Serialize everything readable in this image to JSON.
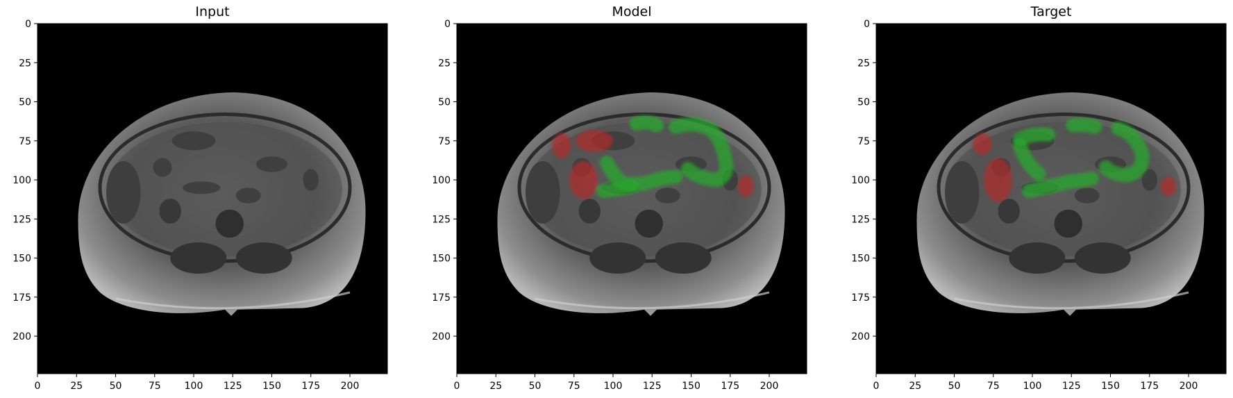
{
  "panels": [
    {
      "key": "input",
      "title": "Input",
      "overlay": false
    },
    {
      "key": "model",
      "title": "Model",
      "overlay": true
    },
    {
      "key": "target",
      "title": "Target",
      "overlay": true
    }
  ],
  "axes": {
    "x_ticks": [
      "0",
      "25",
      "50",
      "75",
      "100",
      "125",
      "150",
      "175",
      "200"
    ],
    "y_ticks": [
      "0",
      "25",
      "50",
      "75",
      "100",
      "125",
      "150",
      "175",
      "200"
    ],
    "extent": [
      0,
      224
    ]
  },
  "colors": {
    "background": "#000000",
    "segment_red": "#b32a2a",
    "segment_green": "#28a82c"
  }
}
